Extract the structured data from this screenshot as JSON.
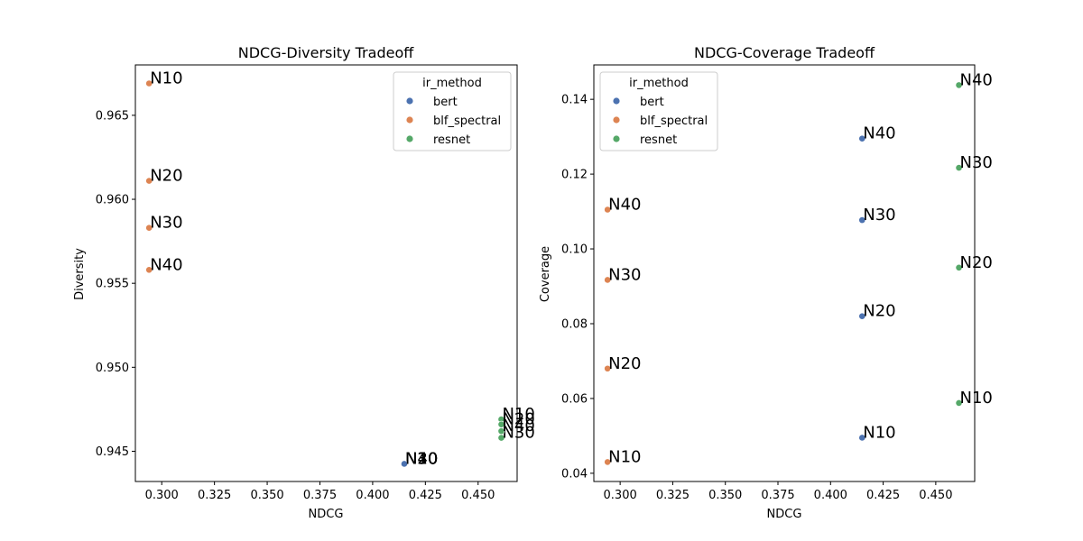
{
  "chart_data": [
    {
      "type": "scatter",
      "title": "NDCG-Diversity Tradeoff",
      "xlabel": "NDCG",
      "ylabel": "Diversity",
      "xlim": [
        0.2875,
        0.4685
      ],
      "ylim": [
        0.9432,
        0.968
      ],
      "xticks": [
        0.3,
        0.325,
        0.35,
        0.375,
        0.4,
        0.425,
        0.45
      ],
      "xtick_labels": [
        "0.300",
        "0.325",
        "0.350",
        "0.375",
        "0.400",
        "0.425",
        "0.450"
      ],
      "yticks": [
        0.945,
        0.95,
        0.955,
        0.96,
        0.965
      ],
      "ytick_labels": [
        "0.945",
        "0.950",
        "0.955",
        "0.960",
        "0.965"
      ],
      "legend": {
        "title": "ir_method",
        "placement": "top-right"
      },
      "series": [
        {
          "name": "bert",
          "color": "#4c72b0",
          "points": [
            {
              "x": 0.415,
              "y": 0.94425,
              "label": "N10"
            },
            {
              "x": 0.415,
              "y": 0.94425,
              "label": "N20"
            },
            {
              "x": 0.415,
              "y": 0.94425,
              "label": "N30"
            },
            {
              "x": 0.415,
              "y": 0.94425,
              "label": "N40"
            }
          ]
        },
        {
          "name": "blf_spectral",
          "color": "#dd8452",
          "points": [
            {
              "x": 0.294,
              "y": 0.9669,
              "label": "N10"
            },
            {
              "x": 0.294,
              "y": 0.9611,
              "label": "N20"
            },
            {
              "x": 0.294,
              "y": 0.9583,
              "label": "N30"
            },
            {
              "x": 0.294,
              "y": 0.9558,
              "label": "N40"
            }
          ]
        },
        {
          "name": "resnet",
          "color": "#55a868",
          "points": [
            {
              "x": 0.461,
              "y": 0.9469,
              "label": "N10"
            },
            {
              "x": 0.461,
              "y": 0.9466,
              "label": "N20"
            },
            {
              "x": 0.461,
              "y": 0.9458,
              "label": "N30"
            },
            {
              "x": 0.461,
              "y": 0.9462,
              "label": "N40"
            }
          ]
        }
      ]
    },
    {
      "type": "scatter",
      "title": "NDCG-Coverage Tradeoff",
      "xlabel": "NDCG",
      "ylabel": "Coverage",
      "xlim": [
        0.2875,
        0.4685
      ],
      "ylim": [
        0.0378,
        0.1492
      ],
      "xticks": [
        0.3,
        0.325,
        0.35,
        0.375,
        0.4,
        0.425,
        0.45
      ],
      "xtick_labels": [
        "0.300",
        "0.325",
        "0.350",
        "0.375",
        "0.400",
        "0.425",
        "0.450"
      ],
      "yticks": [
        0.04,
        0.06,
        0.08,
        0.1,
        0.12,
        0.14
      ],
      "ytick_labels": [
        "0.04",
        "0.06",
        "0.08",
        "0.10",
        "0.12",
        "0.14"
      ],
      "legend": {
        "title": "ir_method",
        "placement": "top-left"
      },
      "series": [
        {
          "name": "bert",
          "color": "#4c72b0",
          "points": [
            {
              "x": 0.415,
              "y": 0.0495,
              "label": "N10"
            },
            {
              "x": 0.415,
              "y": 0.082,
              "label": "N20"
            },
            {
              "x": 0.415,
              "y": 0.1077,
              "label": "N30"
            },
            {
              "x": 0.415,
              "y": 0.1295,
              "label": "N40"
            }
          ]
        },
        {
          "name": "blf_spectral",
          "color": "#dd8452",
          "points": [
            {
              "x": 0.294,
              "y": 0.043,
              "label": "N10"
            },
            {
              "x": 0.294,
              "y": 0.068,
              "label": "N20"
            },
            {
              "x": 0.294,
              "y": 0.0917,
              "label": "N30"
            },
            {
              "x": 0.294,
              "y": 0.1105,
              "label": "N40"
            }
          ]
        },
        {
          "name": "resnet",
          "color": "#55a868",
          "points": [
            {
              "x": 0.461,
              "y": 0.0588,
              "label": "N10"
            },
            {
              "x": 0.461,
              "y": 0.095,
              "label": "N20"
            },
            {
              "x": 0.461,
              "y": 0.1217,
              "label": "N30"
            },
            {
              "x": 0.461,
              "y": 0.1438,
              "label": "N40"
            }
          ]
        }
      ]
    }
  ]
}
